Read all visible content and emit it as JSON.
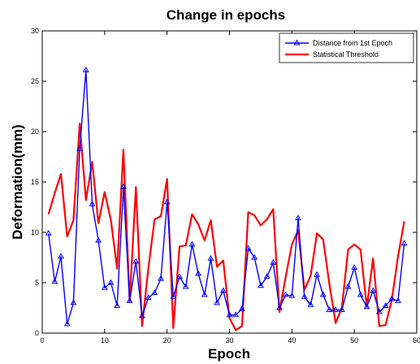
{
  "chart_data": {
    "type": "line",
    "title": "Change in epochs",
    "xlabel": "Epoch",
    "ylabel": "Deformation(mm)",
    "xlim": [
      0,
      60
    ],
    "ylim": [
      0,
      30
    ],
    "xticks": [
      0,
      10,
      20,
      30,
      40,
      50,
      60
    ],
    "yticks": [
      0,
      5,
      10,
      15,
      20,
      25,
      30
    ],
    "grid": false,
    "legend_position": "top-right",
    "x": [
      1,
      2,
      3,
      4,
      5,
      6,
      7,
      8,
      9,
      10,
      11,
      12,
      13,
      14,
      15,
      16,
      17,
      18,
      19,
      20,
      21,
      22,
      23,
      24,
      25,
      26,
      27,
      28,
      29,
      30,
      31,
      32,
      33,
      34,
      35,
      36,
      37,
      38,
      39,
      40,
      41,
      42,
      43,
      44,
      45,
      46,
      47,
      48,
      49,
      50,
      51,
      52,
      53,
      54,
      55,
      56,
      57,
      58
    ],
    "series": [
      {
        "name": "Distance from 1st Epoch",
        "color": "#0000ff",
        "marker": "triangle",
        "values": [
          9.9,
          5.1,
          7.6,
          0.9,
          3.0,
          18.3,
          26.1,
          12.8,
          9.2,
          4.5,
          5.0,
          2.7,
          14.5,
          3.2,
          7.1,
          1.7,
          3.5,
          4.0,
          5.4,
          13.0,
          3.6,
          5.6,
          4.6,
          8.8,
          5.9,
          3.8,
          7.4,
          3.0,
          4.2,
          1.8,
          1.8,
          2.4,
          8.4,
          7.5,
          4.7,
          5.6,
          7.0,
          2.5,
          3.8,
          3.7,
          11.4,
          3.6,
          2.8,
          5.8,
          3.8,
          2.3,
          2.3,
          2.3,
          4.6,
          6.5,
          3.8,
          2.6,
          4.2,
          2.1,
          2.7,
          3.4,
          3.2,
          8.9
        ]
      },
      {
        "name": "Statistical Threshold",
        "color": "#ff0000",
        "values": [
          11.8,
          13.9,
          15.8,
          9.6,
          11.2,
          20.8,
          13.2,
          17.0,
          10.9,
          14.0,
          11.2,
          6.4,
          18.2,
          3.1,
          14.5,
          0.7,
          6.4,
          11.3,
          11.6,
          15.3,
          0.5,
          8.6,
          8.7,
          11.8,
          10.8,
          9.2,
          11.2,
          6.6,
          7.2,
          1.5,
          0.3,
          0.7,
          12.0,
          11.7,
          10.7,
          11.3,
          12.3,
          2.1,
          5.6,
          8.8,
          10.2,
          4.3,
          5.7,
          9.9,
          9.3,
          4.9,
          1.0,
          2.5,
          8.3,
          8.8,
          8.3,
          2.6,
          7.4,
          0.7,
          0.8,
          3.3,
          7.6,
          11.1
        ]
      }
    ]
  }
}
